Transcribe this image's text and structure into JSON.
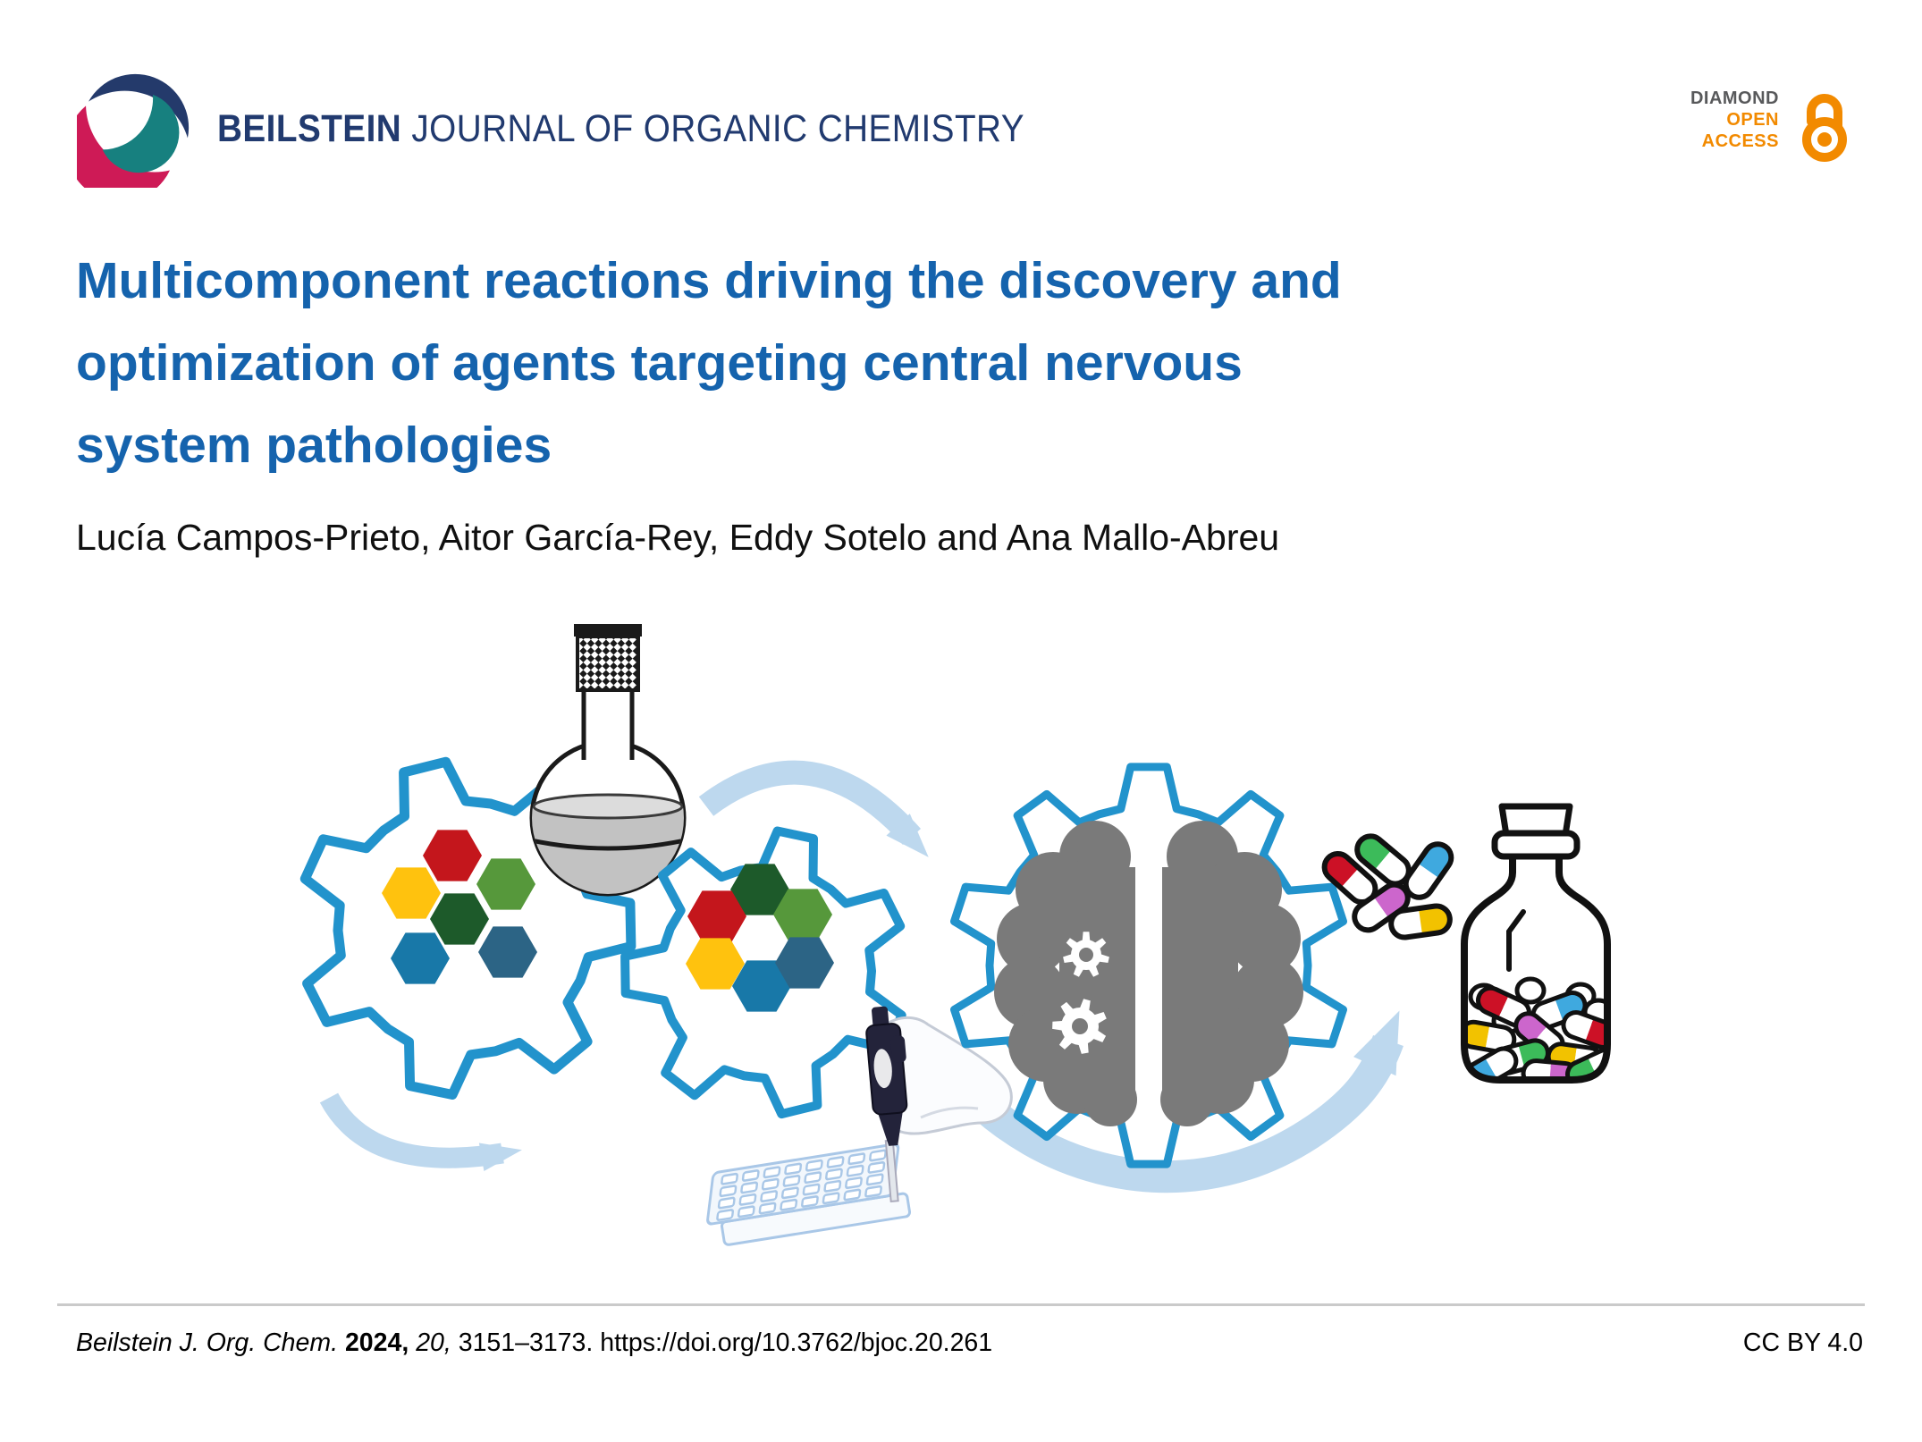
{
  "header": {
    "journal_bold": "BEILSTEIN",
    "journal_rest": " JOURNAL OF ORGANIC CHEMISTRY",
    "badge": {
      "line1": "DIAMOND",
      "line2": "OPEN",
      "line3": "ACCESS"
    }
  },
  "article": {
    "title_line1": "Multicomponent reactions driving the discovery and",
    "title_line2": "optimization of agents targeting central nervous",
    "title_line3": "system pathologies",
    "authors": "Lucía Campos-Prieto, Aitor García-Rey, Eddy Sotelo and Ana Mallo-Abreu"
  },
  "footer": {
    "citation_journal": "Beilstein J. Org. Chem. ",
    "citation_year": "2024, ",
    "citation_volume": "20, ",
    "citation_rest": "3151–3173. https://doi.org/10.3762/bjoc.20.261",
    "license": "CC BY 4.0"
  },
  "graphic": {
    "icons": [
      "gear-icon",
      "flask-icon",
      "curved-arrow-icon",
      "pipette-icon",
      "microplate-icon",
      "brain-gear-icon",
      "capsule-pills-icon",
      "pill-bottle-icon"
    ],
    "palette": {
      "logo_navy": "#243A6B",
      "logo_teal": "#17807F",
      "logo_pink": "#CE1A56",
      "oa_orange": "#F28A00",
      "badge_gray": "#58595B",
      "title_blue": "#1563AD",
      "gear_blue": "#2293CC",
      "arrow_blue": "#BDD8EE",
      "brain_gray": "#7A7A7A",
      "hex_red": "#C4161C",
      "hex_yellow": "#FFC20E",
      "hex_green": "#56983B",
      "hex_dark_green": "#1D5A2A",
      "hex_blue": "#1878A8",
      "hex_steel": "#2C6485",
      "cap_red": "#CC1126",
      "cap_green": "#3CBB5A",
      "cap_blue": "#3FA9DF",
      "cap_magenta": "#CC66CC",
      "cap_yellow": "#F2C200"
    }
  }
}
